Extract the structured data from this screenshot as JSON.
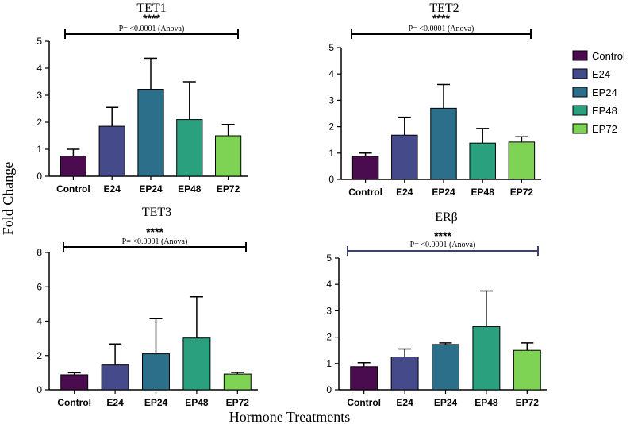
{
  "colors": {
    "Control": "#4b0c4f",
    "E24": "#454a8a",
    "EP24": "#2c6f8a",
    "EP48": "#2aa07f",
    "EP72": "#7fd354",
    "bracket_default": "#000000",
    "bracket_erb": "#3d3f7a"
  },
  "legend": [
    "Control",
    "E24",
    "EP24",
    "EP48",
    "EP72"
  ],
  "y_axis_title": "Fold Change",
  "x_axis_title": "Hormone Treatments",
  "chart_data": [
    {
      "type": "bar",
      "title": "TET1",
      "categories": [
        "Control",
        "E24",
        "EP24",
        "EP48",
        "EP72"
      ],
      "values": [
        0.75,
        1.85,
        3.22,
        2.1,
        1.5
      ],
      "errors": [
        0.25,
        0.7,
        1.15,
        1.4,
        0.42
      ],
      "ylim": [
        0,
        5
      ],
      "yticks": [
        "0",
        "1",
        "2",
        "3",
        "4",
        "5"
      ],
      "significance": "****",
      "pvalue": "P= <0.0001 (Anova)"
    },
    {
      "type": "bar",
      "title": "TET2",
      "categories": [
        "Control",
        "E24",
        "EP24",
        "EP48",
        "EP72"
      ],
      "values": [
        0.88,
        1.68,
        2.7,
        1.38,
        1.42
      ],
      "errors": [
        0.12,
        0.68,
        0.9,
        0.55,
        0.2
      ],
      "ylim": [
        0,
        5
      ],
      "yticks": [
        "0",
        "1",
        "2",
        "3",
        "4",
        "5"
      ],
      "significance": "****",
      "pvalue": "P= <0.0001 (Anova)"
    },
    {
      "type": "bar",
      "title": "TET3",
      "categories": [
        "Control",
        "E24",
        "EP24",
        "EP48",
        "EP72"
      ],
      "values": [
        0.88,
        1.45,
        2.1,
        3.02,
        0.92
      ],
      "errors": [
        0.12,
        1.22,
        2.05,
        2.4,
        0.1
      ],
      "ylim": [
        0,
        8
      ],
      "yticks": [
        "0",
        "2",
        "4",
        "6",
        "8"
      ],
      "significance": "****",
      "pvalue": "P= <0.0001 (Anova)"
    },
    {
      "type": "bar",
      "title": "ERβ",
      "categories": [
        "Control",
        "E24",
        "EP24",
        "EP48",
        "EP72"
      ],
      "values": [
        0.88,
        1.25,
        1.72,
        2.4,
        1.5
      ],
      "errors": [
        0.15,
        0.3,
        0.06,
        1.35,
        0.28
      ],
      "ylim": [
        0,
        5
      ],
      "yticks": [
        "0",
        "1",
        "2",
        "3",
        "4",
        "5"
      ],
      "significance": "****",
      "pvalue": "P= <0.0001 (Anova)"
    }
  ]
}
